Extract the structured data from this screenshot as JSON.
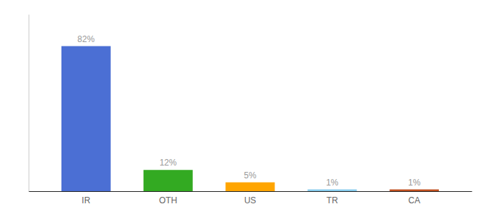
{
  "chart_data": {
    "type": "bar",
    "categories": [
      "IR",
      "OTH",
      "US",
      "TR",
      "CA"
    ],
    "values": [
      82,
      12,
      5,
      1,
      1
    ],
    "value_labels": [
      "82%",
      "12%",
      "5%",
      "1%",
      "1%"
    ],
    "colors": [
      "#4B6FD4",
      "#33AA22",
      "#FFA500",
      "#88CCEE",
      "#C05020"
    ],
    "ylim": [
      0,
      100
    ],
    "data_labels": true,
    "tick_labels": "x"
  }
}
